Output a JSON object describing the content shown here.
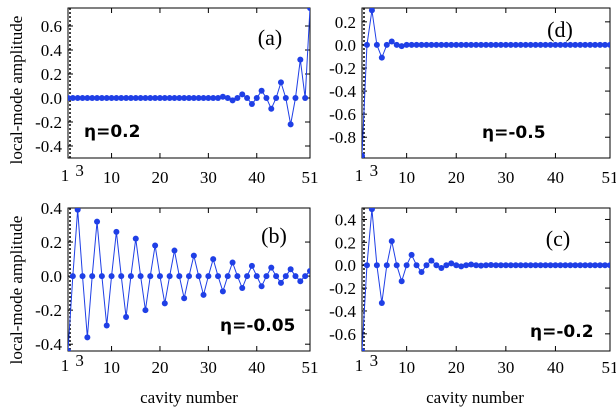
{
  "figure": {
    "ylabel": "local-mode amplitude",
    "xlabel": "cavity number"
  },
  "chart_data": [
    {
      "type": "line",
      "panel": "(a)",
      "annotation": "η=0.2",
      "xlim": [
        1,
        51
      ],
      "ylim": [
        -0.5,
        0.75
      ],
      "xticks": [
        10,
        20,
        30,
        40,
        51
      ],
      "xticks_extra": [
        "1",
        "3"
      ],
      "yticks": [
        -0.4,
        -0.2,
        0.0,
        0.2,
        0.4,
        0.6
      ],
      "ytick_labels": [
        "-0.4",
        "-0.2",
        "0.0",
        "0.2",
        "0.4",
        "0.6"
      ],
      "series": [
        {
          "color": "#1f3fe6",
          "x": [
            1,
            2,
            3,
            4,
            5,
            6,
            7,
            8,
            9,
            10,
            11,
            12,
            13,
            14,
            15,
            16,
            17,
            18,
            19,
            20,
            21,
            22,
            23,
            24,
            25,
            26,
            27,
            28,
            29,
            30,
            31,
            32,
            33,
            34,
            35,
            36,
            37,
            38,
            39,
            40,
            41,
            42,
            43,
            44,
            45,
            46,
            47,
            48,
            49,
            50,
            51
          ],
          "y": [
            0,
            0,
            0,
            0,
            0,
            0,
            0,
            0,
            0,
            0,
            0,
            0,
            0,
            0,
            0,
            0,
            0,
            0,
            0,
            0,
            0,
            0,
            0,
            0,
            0,
            0,
            0,
            0,
            0,
            0,
            0,
            0,
            0.01,
            0,
            -0.02,
            0,
            0.03,
            0,
            -0.05,
            0,
            0.06,
            0,
            -0.09,
            0,
            0.13,
            0,
            -0.22,
            0,
            0.32,
            0,
            0.75
          ]
        }
      ]
    },
    {
      "type": "line",
      "panel": "(d)",
      "annotation": "η=-0.5",
      "xlim": [
        1,
        51
      ],
      "ylim": [
        -0.98,
        0.32
      ],
      "xticks": [
        10,
        20,
        30,
        40,
        51
      ],
      "xticks_extra": [
        "1",
        "3"
      ],
      "yticks": [
        -0.8,
        -0.6,
        -0.4,
        -0.2,
        0.0,
        0.2
      ],
      "ytick_labels": [
        "-0.8",
        "-0.6",
        "-0.4",
        "-0.2",
        "0.0",
        "0.2"
      ],
      "series": [
        {
          "color": "#1f3fe6",
          "x": [
            1,
            2,
            3,
            4,
            5,
            6,
            7,
            8,
            9,
            10,
            11,
            12,
            13,
            14,
            15,
            16,
            17,
            18,
            19,
            20,
            21,
            22,
            23,
            24,
            25,
            26,
            27,
            28,
            29,
            30,
            31,
            32,
            33,
            34,
            35,
            36,
            37,
            38,
            39,
            40,
            41,
            42,
            43,
            44,
            45,
            46,
            47,
            48,
            49,
            50,
            51
          ],
          "y": [
            -0.96,
            0,
            0.3,
            0,
            -0.11,
            0,
            0.03,
            0,
            -0.01,
            0,
            0,
            0,
            0,
            0,
            0,
            0,
            0,
            0,
            0,
            0,
            0,
            0,
            0,
            0,
            0,
            0,
            0,
            0,
            0,
            0,
            0,
            0,
            0,
            0,
            0,
            0,
            0,
            0,
            0,
            0,
            0,
            0,
            0,
            0,
            0,
            0,
            0,
            0,
            0,
            0,
            0
          ]
        }
      ]
    },
    {
      "type": "line",
      "panel": "(b)",
      "annotation": "η=-0.05",
      "xlim": [
        1,
        51
      ],
      "ylim": [
        -0.44,
        0.4
      ],
      "xticks": [
        10,
        20,
        30,
        40,
        51
      ],
      "xticks_extra": [
        "1",
        "3"
      ],
      "yticks": [
        -0.4,
        -0.2,
        0.0,
        0.2,
        0.4
      ],
      "ytick_labels": [
        "-0.4",
        "-0.2",
        "0.0",
        "0.2",
        "0.4"
      ],
      "series": [
        {
          "color": "#1f3fe6",
          "x": [
            1,
            2,
            3,
            4,
            5,
            6,
            7,
            8,
            9,
            10,
            11,
            12,
            13,
            14,
            15,
            16,
            17,
            18,
            19,
            20,
            21,
            22,
            23,
            24,
            25,
            26,
            27,
            28,
            29,
            30,
            31,
            32,
            33,
            34,
            35,
            36,
            37,
            38,
            39,
            40,
            41,
            42,
            43,
            44,
            45,
            46,
            47,
            48,
            49,
            50,
            51
          ],
          "y": [
            -0.44,
            0,
            0.39,
            0,
            -0.36,
            0,
            0.32,
            0,
            -0.29,
            0,
            0.26,
            0,
            -0.24,
            0,
            0.22,
            0,
            -0.2,
            0,
            0.18,
            0,
            -0.16,
            0,
            0.15,
            0,
            -0.13,
            0,
            0.12,
            0,
            -0.11,
            0,
            0.1,
            0,
            -0.09,
            0,
            0.08,
            0,
            -0.07,
            0,
            0.06,
            0,
            -0.06,
            0,
            0.05,
            0,
            -0.04,
            0,
            0.04,
            0,
            -0.03,
            0,
            0.03
          ]
        }
      ]
    },
    {
      "type": "line",
      "panel": "(c)",
      "annotation": "η=-0.2",
      "xlim": [
        1,
        51
      ],
      "ylim": [
        -0.75,
        0.5
      ],
      "xticks": [
        10,
        20,
        30,
        40,
        51
      ],
      "xticks_extra": [
        "1",
        "3"
      ],
      "yticks": [
        -0.6,
        -0.4,
        -0.2,
        0.0,
        0.2,
        0.4
      ],
      "ytick_labels": [
        "-0.6",
        "-0.4",
        "-0.2",
        "0.0",
        "0.2",
        "0.4"
      ],
      "series": [
        {
          "color": "#1f3fe6",
          "x": [
            1,
            2,
            3,
            4,
            5,
            6,
            7,
            8,
            9,
            10,
            11,
            12,
            13,
            14,
            15,
            16,
            17,
            18,
            19,
            20,
            21,
            22,
            23,
            24,
            25,
            26,
            27,
            28,
            29,
            30,
            31,
            32,
            33,
            34,
            35,
            36,
            37,
            38,
            39,
            40,
            41,
            42,
            43,
            44,
            45,
            46,
            47,
            48,
            49,
            50,
            51
          ],
          "y": [
            -0.75,
            0,
            0.49,
            0,
            -0.33,
            0,
            0.21,
            0,
            -0.14,
            0,
            0.09,
            0,
            -0.06,
            0,
            0.04,
            0,
            -0.025,
            0,
            0.016,
            0,
            -0.01,
            0,
            0.006,
            0,
            -0.004,
            0,
            0.002,
            0,
            0,
            0,
            0,
            0,
            0,
            0,
            0,
            0,
            0,
            0,
            0,
            0,
            0,
            0,
            0,
            0,
            0,
            0,
            0,
            0,
            0,
            0,
            0
          ]
        }
      ]
    }
  ]
}
